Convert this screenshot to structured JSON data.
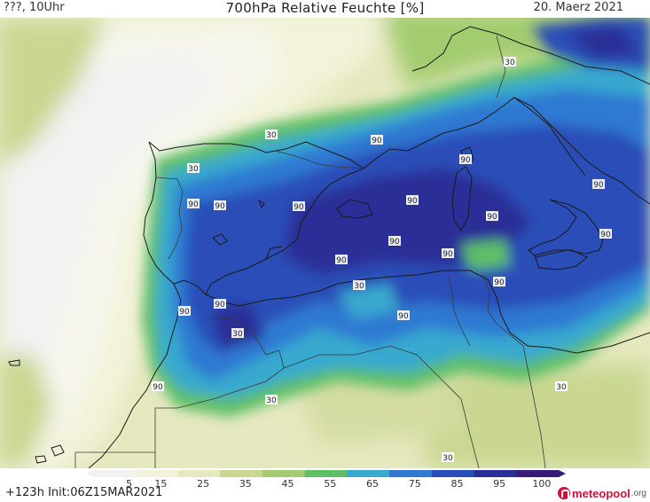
{
  "header": {
    "left": "???, 10Uhr",
    "title": "700hPa Relative Feuchte [%]",
    "date": "20. Maerz 2021"
  },
  "footer": {
    "run_info": "+123h Init:06Z15MAR2021",
    "logo_text": "meteopool",
    "logo_tld": ".org"
  },
  "legend": {
    "labels": [
      "5",
      "15",
      "25",
      "35",
      "45",
      "55",
      "65",
      "75",
      "85",
      "95",
      "100"
    ],
    "colors": [
      "#f2f2f2",
      "#f3f3da",
      "#e6e8bf",
      "#c9d790",
      "#a3cc6e",
      "#5fbf66",
      "#39a9cf",
      "#2f79d2",
      "#2a4eb7",
      "#292e96",
      "#3a1a78"
    ]
  },
  "contour_labels": [
    "30",
    "30",
    "90",
    "30",
    "90",
    "90",
    "90",
    "90",
    "90",
    "90",
    "90",
    "90",
    "90",
    "90",
    "90",
    "90",
    "90",
    "90",
    "30",
    "30",
    "90",
    "90",
    "90",
    "30",
    "30",
    "30",
    "30",
    "30"
  ],
  "colors": {
    "coast": "#1a1a1a",
    "text": "#222222",
    "logo": "#d0103a"
  }
}
